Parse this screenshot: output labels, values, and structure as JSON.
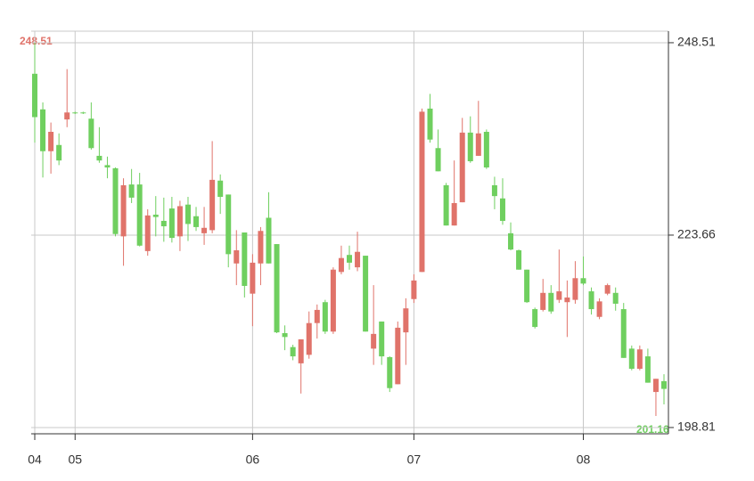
{
  "chart_data": {
    "type": "candlestick",
    "categories": [
      "04",
      null,
      null,
      null,
      null,
      "05",
      null,
      null,
      null,
      null,
      null,
      null,
      null,
      null,
      null,
      null,
      null,
      null,
      null,
      null,
      null,
      null,
      null,
      null,
      null,
      null,
      null,
      "06",
      null,
      null,
      null,
      null,
      null,
      null,
      null,
      null,
      null,
      null,
      null,
      null,
      null,
      null,
      null,
      null,
      null,
      null,
      null,
      "07",
      null,
      null,
      null,
      null,
      null,
      null,
      null,
      null,
      null,
      null,
      null,
      null,
      null,
      null,
      null,
      null,
      null,
      null,
      null,
      null,
      "08",
      null,
      null,
      null,
      null,
      null,
      null,
      null,
      null,
      null,
      null
    ],
    "series": [
      {
        "up_color": "#e0736a",
        "down_color": "#6fcf5f",
        "open": [
          244.5,
          239.9,
          234.5,
          235.3,
          238.6,
          239.5,
          239.5,
          238.7,
          233.9,
          232.7,
          232.3,
          223.5,
          230.2,
          230.2,
          221.6,
          226.3,
          225.5,
          227.1,
          223.5,
          227.6,
          226.1,
          223.9,
          224.3,
          230.7,
          228.9,
          220.0,
          224.0,
          216.1,
          220.0,
          225.9,
          222.5,
          211.0,
          209.2,
          207.1,
          208.2,
          212.3,
          215.0,
          211.2,
          218.9,
          221.1,
          219.5,
          221.0,
          209.0,
          212.5,
          207.9,
          204.4,
          211.1,
          215.4,
          218.9,
          240.0,
          234.9,
          230.1,
          224.9,
          227.9,
          236.9,
          233.9,
          237.0,
          230.1,
          228.4,
          223.9,
          221.7,
          219.2,
          214.1,
          214.0,
          216.2,
          215.3,
          215.0,
          215.3,
          218.1,
          216.4,
          213.1,
          216.1,
          216.2,
          214.1,
          209.0,
          206.4,
          208.0,
          203.4,
          204.8
        ],
        "high": [
          248.51,
          240.8,
          238.2,
          236.8,
          245.1,
          239.6,
          239.6,
          240.8,
          237.6,
          233.8,
          232.4,
          231.0,
          232.2,
          231.7,
          227.0,
          228.7,
          228.5,
          228.6,
          228.1,
          228.6,
          227.3,
          227.3,
          235.8,
          231.5,
          228.9,
          224.3,
          224.0,
          221.2,
          224.7,
          229.2,
          222.5,
          212.0,
          209.5,
          210.2,
          213.8,
          214.7,
          215.3,
          219.5,
          222.3,
          222.3,
          224.1,
          221.0,
          217.2,
          212.5,
          208.0,
          212.5,
          215.5,
          218.6,
          240.0,
          241.9,
          237.3,
          230.4,
          233.3,
          238.8,
          239.0,
          241.0,
          237.3,
          231.2,
          231.0,
          225.3,
          221.8,
          219.2,
          214.3,
          218.0,
          217.2,
          221.8,
          217.8,
          220.3,
          220.9,
          216.9,
          215.5,
          217.4,
          216.9,
          214.9,
          209.4,
          209.4,
          209.0,
          205.1,
          205.7
        ],
        "low": [
          235.6,
          231.1,
          231.6,
          232.7,
          237.6,
          239.3,
          239.3,
          234.7,
          233.0,
          231.0,
          223.5,
          219.7,
          227.8,
          222.2,
          221.0,
          223.5,
          222.8,
          222.7,
          221.6,
          222.9,
          224.2,
          222.4,
          223.9,
          226.4,
          219.5,
          217.2,
          215.6,
          211.9,
          217.2,
          220.0,
          211.0,
          208.8,
          207.5,
          203.2,
          207.7,
          210.3,
          210.9,
          210.9,
          218.6,
          219.2,
          219.0,
          211.2,
          206.9,
          206.9,
          203.4,
          204.4,
          206.9,
          214.9,
          218.9,
          235.6,
          231.9,
          224.9,
          224.9,
          227.9,
          233.0,
          233.9,
          232.2,
          227.0,
          225.0,
          221.7,
          219.2,
          214.9,
          211.6,
          213.8,
          213.5,
          214.9,
          210.5,
          214.8,
          217.2,
          213.4,
          212.8,
          215.9,
          213.9,
          207.8,
          206.2,
          206.2,
          204.6,
          200.3,
          201.8
        ],
        "close": [
          238.9,
          234.5,
          237.0,
          233.3,
          239.5,
          239.4,
          239.4,
          234.9,
          233.3,
          232.4,
          223.8,
          230.1,
          228.5,
          222.3,
          226.2,
          226.0,
          224.8,
          223.3,
          227.4,
          225.1,
          224.7,
          224.6,
          230.8,
          228.6,
          221.2,
          221.7,
          217.1,
          220.1,
          224.2,
          220.0,
          211.1,
          210.5,
          208.0,
          210.2,
          212.3,
          214.0,
          211.2,
          219.2,
          220.7,
          220.1,
          221.5,
          211.2,
          210.9,
          208.0,
          203.9,
          211.7,
          214.2,
          217.8,
          239.6,
          236.0,
          231.9,
          224.9,
          227.8,
          236.9,
          233.2,
          236.8,
          232.4,
          228.7,
          225.5,
          221.8,
          219.2,
          215.0,
          211.8,
          216.2,
          213.8,
          216.4,
          215.6,
          218.1,
          217.4,
          214.1,
          215.1,
          217.2,
          214.8,
          207.8,
          206.4,
          208.9,
          204.6,
          205.1,
          203.8
        ]
      }
    ],
    "ylim": [
      198,
      250
    ],
    "yticks": [
      198.81,
      223.66,
      248.51
    ],
    "grid": true,
    "annotations": [
      "248.51",
      "201.16"
    ]
  }
}
